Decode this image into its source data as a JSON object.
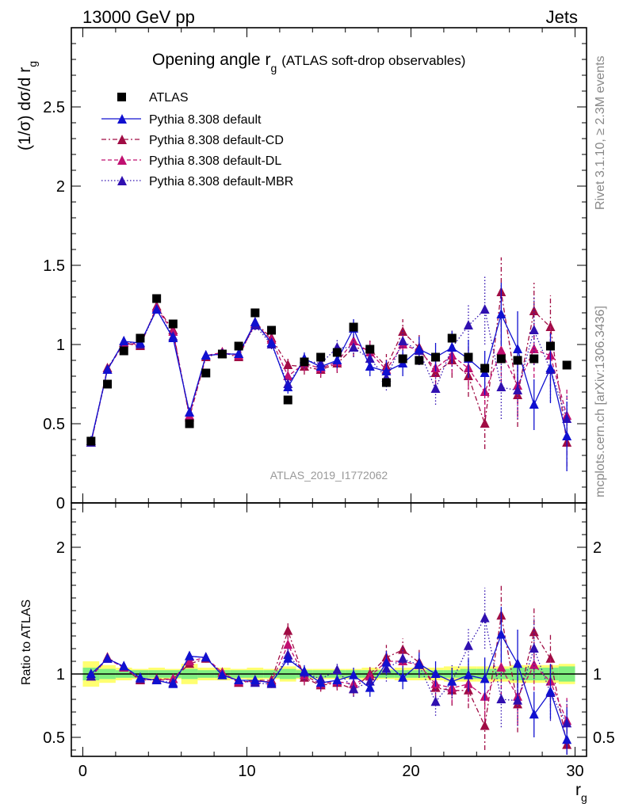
{
  "header": {
    "energy_label": "13000 GeV pp",
    "process_label": "Jets"
  },
  "side": {
    "rivet_label": "Rivet 3.1.10, ≥ 2.3M events",
    "mcplots_label": "mcplots.cern.ch [arXiv:1306.3436]"
  },
  "chart_data": [
    {
      "type": "scatter",
      "title_main": "Opening angle r",
      "title_sub": "g",
      "title_rest": "(ATLAS soft-drop observables)",
      "ylabel": "(1/σ) dσ/d r",
      "ylabel_sub": "g",
      "xlim": [
        -0.7,
        30.7
      ],
      "ylim": [
        0,
        3
      ],
      "yticks": [
        "0.5",
        "1",
        "1.5",
        "2",
        "2.5"
      ],
      "yticks_values": [
        0.5,
        1,
        1.5,
        2,
        2.5
      ],
      "watermark": "ATLAS_2019_I1772062",
      "legend_position": "top-left",
      "x": [
        0.5,
        1.5,
        2.5,
        3.5,
        4.5,
        5.5,
        6.5,
        7.5,
        8.5,
        9.5,
        10.5,
        11.5,
        12.5,
        13.5,
        14.5,
        15.5,
        16.5,
        17.5,
        18.5,
        19.5,
        20.5,
        21.5,
        22.5,
        23.5,
        24.5,
        25.5,
        26.5,
        27.5,
        28.5,
        29.5
      ],
      "series": [
        {
          "name": "ATLAS",
          "color": "#000000",
          "marker": "square",
          "values": [
            0.39,
            0.75,
            0.96,
            1.04,
            1.29,
            1.13,
            0.5,
            0.82,
            0.94,
            0.99,
            1.2,
            1.09,
            0.65,
            0.89,
            0.92,
            0.95,
            1.11,
            0.97,
            0.76,
            0.91,
            0.9,
            0.92,
            1.04,
            0.92,
            0.85,
            0.91,
            0.9,
            0.91,
            0.99,
            0.87
          ]
        },
        {
          "name": "Pythia 8.308 default",
          "color": "#1010d0",
          "marker": "triangle",
          "dash": "",
          "values": [
            0.39,
            0.84,
            1.02,
            1.01,
            1.22,
            1.04,
            0.57,
            0.93,
            0.94,
            0.94,
            1.14,
            1.01,
            0.73,
            0.91,
            0.86,
            0.9,
            1.1,
            0.86,
            0.83,
            0.88,
            0.97,
            0.92,
            0.98,
            0.91,
            0.82,
            1.19,
            0.97,
            0.62,
            0.85,
            0.42
          ],
          "errors": [
            0.01,
            0.01,
            0.01,
            0.01,
            0.01,
            0.01,
            0.02,
            0.02,
            0.02,
            0.02,
            0.03,
            0.03,
            0.04,
            0.04,
            0.04,
            0.05,
            0.06,
            0.06,
            0.07,
            0.08,
            0.08,
            0.09,
            0.1,
            0.12,
            0.14,
            0.2,
            0.24,
            0.16,
            0.22,
            0.22
          ]
        },
        {
          "name": "Pythia 8.308 default-CD",
          "color": "#a00c44",
          "marker": "triangle",
          "dash": "6,3,2,3",
          "values": [
            0.38,
            0.85,
            1.01,
            0.99,
            1.24,
            1.09,
            0.54,
            0.92,
            0.95,
            0.92,
            1.14,
            1.04,
            0.87,
            0.86,
            0.84,
            0.88,
            0.98,
            0.97,
            0.86,
            1.08,
            0.98,
            0.82,
            0.9,
            0.8,
            0.5,
            1.33,
            0.68,
            1.21,
            1.11,
            0.38
          ],
          "errors": [
            0.01,
            0.01,
            0.01,
            0.01,
            0.01,
            0.01,
            0.02,
            0.02,
            0.02,
            0.02,
            0.03,
            0.03,
            0.04,
            0.05,
            0.05,
            0.06,
            0.06,
            0.07,
            0.08,
            0.08,
            0.09,
            0.1,
            0.11,
            0.13,
            0.16,
            0.22,
            0.2,
            0.18,
            0.2,
            0.15
          ]
        },
        {
          "name": "Pythia 8.308 default-DL",
          "color": "#c01070",
          "marker": "triangle",
          "dash": "5,3",
          "values": [
            0.38,
            0.84,
            1.01,
            1.0,
            1.23,
            1.08,
            0.55,
            0.93,
            0.95,
            0.93,
            1.13,
            1.03,
            0.8,
            0.88,
            0.85,
            0.89,
            1.02,
            0.95,
            0.84,
            1.0,
            0.96,
            0.85,
            0.93,
            0.85,
            0.7,
            0.96,
            0.74,
            0.97,
            0.93,
            0.55
          ],
          "errors": [
            0.01,
            0.01,
            0.01,
            0.01,
            0.01,
            0.01,
            0.02,
            0.02,
            0.02,
            0.02,
            0.03,
            0.03,
            0.04,
            0.05,
            0.05,
            0.06,
            0.06,
            0.07,
            0.08,
            0.08,
            0.09,
            0.1,
            0.11,
            0.13,
            0.16,
            0.2,
            0.2,
            0.18,
            0.2,
            0.18
          ]
        },
        {
          "name": "Pythia 8.308 default-MBR",
          "color": "#3010b0",
          "marker": "triangle",
          "dash": "1.5,2.5",
          "values": [
            0.38,
            0.84,
            1.02,
            1.0,
            1.22,
            1.05,
            0.57,
            0.93,
            0.94,
            0.94,
            1.12,
            1.0,
            0.75,
            0.9,
            0.88,
            0.98,
            0.98,
            0.91,
            0.79,
            1.02,
            0.96,
            0.72,
            0.98,
            1.12,
            1.22,
            0.73,
            0.71,
            1.09,
            0.84,
            0.53
          ],
          "errors": [
            0.01,
            0.01,
            0.01,
            0.01,
            0.01,
            0.01,
            0.02,
            0.02,
            0.02,
            0.02,
            0.03,
            0.03,
            0.04,
            0.05,
            0.05,
            0.06,
            0.06,
            0.07,
            0.08,
            0.08,
            0.09,
            0.1,
            0.12,
            0.14,
            0.22,
            0.2,
            0.18,
            0.22,
            0.2,
            0.16
          ]
        }
      ]
    },
    {
      "type": "scatter",
      "ylabel": "Ratio to ATLAS",
      "xlabel": "r",
      "xlabel_sub": "g",
      "xlim": [
        -0.7,
        30.7
      ],
      "ylim": [
        0.35,
        2.35
      ],
      "xticks": [
        "0",
        "10",
        "20",
        "30"
      ],
      "xticks_values": [
        0,
        10,
        20,
        30
      ],
      "yticks": [
        "0.5",
        "1",
        "2"
      ],
      "yticks_values": [
        0.5,
        1,
        2
      ],
      "band_colors": {
        "stat": "#80ee80",
        "total": "#ffff70"
      },
      "band_stat": [
        0.05,
        0.04,
        0.03,
        0.03,
        0.03,
        0.03,
        0.04,
        0.03,
        0.03,
        0.03,
        0.03,
        0.03,
        0.04,
        0.03,
        0.03,
        0.03,
        0.03,
        0.03,
        0.03,
        0.03,
        0.03,
        0.03,
        0.03,
        0.04,
        0.04,
        0.04,
        0.05,
        0.05,
        0.05,
        0.06
      ],
      "band_total": [
        0.1,
        0.07,
        0.05,
        0.04,
        0.05,
        0.04,
        0.08,
        0.05,
        0.05,
        0.04,
        0.05,
        0.04,
        0.06,
        0.04,
        0.04,
        0.04,
        0.04,
        0.05,
        0.04,
        0.05,
        0.05,
        0.05,
        0.06,
        0.06,
        0.06,
        0.06,
        0.07,
        0.07,
        0.07,
        0.08
      ],
      "series": [
        {
          "name": "Pythia 8.308 default",
          "values": [
            1.0,
            1.12,
            1.06,
            0.97,
            0.95,
            0.92,
            1.14,
            1.13,
            0.99,
            0.95,
            0.95,
            0.93,
            1.12,
            1.02,
            0.93,
            0.95,
            0.99,
            0.89,
            1.09,
            0.97,
            1.08,
            1.0,
            0.94,
            0.99,
            0.96,
            1.31,
            1.08,
            0.68,
            0.86,
            0.48
          ],
          "errors": [
            0.02,
            0.02,
            0.02,
            0.02,
            0.02,
            0.02,
            0.03,
            0.02,
            0.02,
            0.02,
            0.03,
            0.03,
            0.05,
            0.05,
            0.05,
            0.05,
            0.06,
            0.07,
            0.09,
            0.09,
            0.09,
            0.1,
            0.11,
            0.13,
            0.17,
            0.22,
            0.27,
            0.18,
            0.22,
            0.25
          ]
        },
        {
          "name": "Pythia 8.308 default-CD",
          "values": [
            0.98,
            1.13,
            1.05,
            0.95,
            0.96,
            0.96,
            1.08,
            1.12,
            1.01,
            0.93,
            0.95,
            0.95,
            1.34,
            0.97,
            0.91,
            0.93,
            0.88,
            1.0,
            1.13,
            1.19,
            1.09,
            0.89,
            0.87,
            0.87,
            0.59,
            1.46,
            0.76,
            1.33,
            1.12,
            0.44
          ],
          "errors": [
            0.02,
            0.02,
            0.02,
            0.02,
            0.02,
            0.02,
            0.03,
            0.03,
            0.02,
            0.02,
            0.03,
            0.03,
            0.06,
            0.06,
            0.05,
            0.06,
            0.06,
            0.07,
            0.1,
            0.09,
            0.1,
            0.11,
            0.12,
            0.14,
            0.19,
            0.24,
            0.22,
            0.2,
            0.2,
            0.17
          ]
        },
        {
          "name": "Pythia 8.308 default-DL",
          "values": [
            0.98,
            1.12,
            1.05,
            0.96,
            0.95,
            0.96,
            1.1,
            1.13,
            1.01,
            0.94,
            0.94,
            0.94,
            1.23,
            0.99,
            0.92,
            0.94,
            0.92,
            0.98,
            1.1,
            1.1,
            1.07,
            0.92,
            0.89,
            0.92,
            0.82,
            1.05,
            0.82,
            1.07,
            0.94,
            0.63
          ],
          "errors": [
            0.02,
            0.02,
            0.02,
            0.02,
            0.02,
            0.02,
            0.03,
            0.03,
            0.02,
            0.02,
            0.03,
            0.03,
            0.06,
            0.06,
            0.05,
            0.06,
            0.06,
            0.07,
            0.1,
            0.09,
            0.1,
            0.11,
            0.12,
            0.14,
            0.19,
            0.22,
            0.22,
            0.2,
            0.2,
            0.2
          ]
        },
        {
          "name": "Pythia 8.308 default-MBR",
          "values": [
            0.98,
            1.12,
            1.06,
            0.96,
            0.95,
            0.93,
            1.14,
            1.13,
            0.99,
            0.95,
            0.93,
            0.92,
            1.15,
            1.01,
            0.96,
            1.03,
            0.88,
            0.94,
            1.04,
            1.12,
            1.07,
            0.78,
            0.94,
            1.22,
            1.44,
            0.8,
            0.79,
            1.2,
            0.85,
            0.61
          ],
          "errors": [
            0.02,
            0.02,
            0.02,
            0.02,
            0.02,
            0.02,
            0.03,
            0.03,
            0.02,
            0.02,
            0.03,
            0.03,
            0.06,
            0.06,
            0.05,
            0.06,
            0.06,
            0.07,
            0.1,
            0.09,
            0.1,
            0.11,
            0.13,
            0.15,
            0.24,
            0.22,
            0.2,
            0.24,
            0.22,
            0.18
          ]
        }
      ]
    }
  ]
}
